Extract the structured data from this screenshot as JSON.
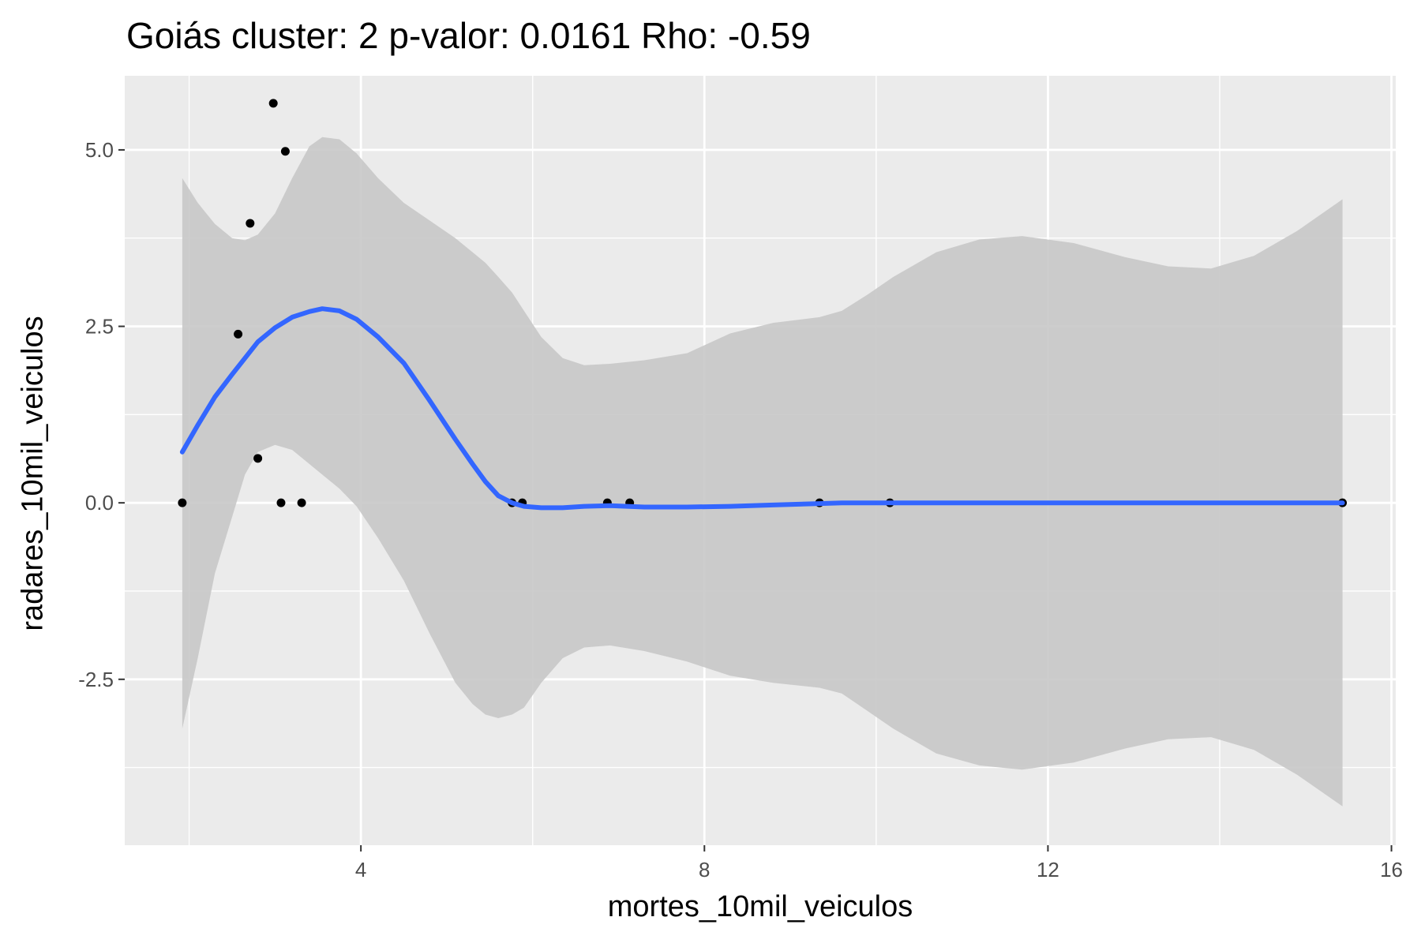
{
  "chart_data": {
    "type": "scatter",
    "title": "Goiás cluster: 2 p-valor: 0.0161 Rho: -0.59",
    "xlabel": "mortes_10mil_veiculos",
    "ylabel": "radares_10mil_veiculos",
    "xlim": [
      1.25,
      16.05
    ],
    "ylim": [
      -4.85,
      6.05
    ],
    "x_ticks": [
      4,
      8,
      12,
      16
    ],
    "x_tick_labels": [
      "4",
      "8",
      "12",
      "16"
    ],
    "y_ticks": [
      -2.5,
      0.0,
      2.5,
      5.0
    ],
    "y_tick_labels": [
      "-2.5",
      "0.0",
      "2.5",
      "5.0"
    ],
    "grid": true,
    "colors": {
      "panel": "#ebebeb",
      "grid": "#ffffff",
      "points": "#000000",
      "smooth_line": "#3366ff",
      "confidence_band": "#c8c8c8"
    },
    "points": [
      {
        "x": 1.92,
        "y": 0.0
      },
      {
        "x": 2.57,
        "y": 2.39
      },
      {
        "x": 2.71,
        "y": 3.96
      },
      {
        "x": 2.8,
        "y": 0.63
      },
      {
        "x": 2.98,
        "y": 5.66
      },
      {
        "x": 3.07,
        "y": 0.0
      },
      {
        "x": 3.12,
        "y": 4.98
      },
      {
        "x": 3.31,
        "y": 0.0
      },
      {
        "x": 5.76,
        "y": 0.0
      },
      {
        "x": 5.88,
        "y": 0.0
      },
      {
        "x": 6.87,
        "y": 0.0
      },
      {
        "x": 7.13,
        "y": 0.0
      },
      {
        "x": 9.34,
        "y": 0.0
      },
      {
        "x": 10.16,
        "y": 0.0
      },
      {
        "x": 15.43,
        "y": 0.0
      }
    ],
    "smooth": [
      {
        "x": 1.92,
        "y": 0.72,
        "lower": -3.2,
        "upper": 4.6
      },
      {
        "x": 2.1,
        "y": 1.1,
        "lower": -2.2,
        "upper": 4.25
      },
      {
        "x": 2.3,
        "y": 1.5,
        "lower": -1.0,
        "upper": 3.95
      },
      {
        "x": 2.5,
        "y": 1.82,
        "lower": -0.2,
        "upper": 3.75
      },
      {
        "x": 2.65,
        "y": 2.05,
        "lower": 0.4,
        "upper": 3.72
      },
      {
        "x": 2.8,
        "y": 2.28,
        "lower": 0.72,
        "upper": 3.8
      },
      {
        "x": 3.0,
        "y": 2.48,
        "lower": 0.82,
        "upper": 4.1
      },
      {
        "x": 3.2,
        "y": 2.63,
        "lower": 0.75,
        "upper": 4.6
      },
      {
        "x": 3.4,
        "y": 2.71,
        "lower": 0.55,
        "upper": 5.05
      },
      {
        "x": 3.55,
        "y": 2.75,
        "lower": 0.4,
        "upper": 5.18
      },
      {
        "x": 3.75,
        "y": 2.72,
        "lower": 0.2,
        "upper": 5.15
      },
      {
        "x": 3.95,
        "y": 2.6,
        "lower": -0.05,
        "upper": 4.95
      },
      {
        "x": 4.2,
        "y": 2.35,
        "lower": -0.5,
        "upper": 4.6
      },
      {
        "x": 4.5,
        "y": 1.98,
        "lower": -1.1,
        "upper": 4.25
      },
      {
        "x": 4.8,
        "y": 1.45,
        "lower": -1.85,
        "upper": 4.0
      },
      {
        "x": 5.1,
        "y": 0.9,
        "lower": -2.55,
        "upper": 3.75
      },
      {
        "x": 5.3,
        "y": 0.55,
        "lower": -2.85,
        "upper": 3.55
      },
      {
        "x": 5.45,
        "y": 0.3,
        "lower": -3.0,
        "upper": 3.4
      },
      {
        "x": 5.6,
        "y": 0.1,
        "lower": -3.05,
        "upper": 3.2
      },
      {
        "x": 5.76,
        "y": 0.0,
        "lower": -3.0,
        "upper": 2.98
      },
      {
        "x": 5.9,
        "y": -0.05,
        "lower": -2.9,
        "upper": 2.72
      },
      {
        "x": 6.1,
        "y": -0.07,
        "lower": -2.55,
        "upper": 2.35
      },
      {
        "x": 6.35,
        "y": -0.07,
        "lower": -2.2,
        "upper": 2.05
      },
      {
        "x": 6.6,
        "y": -0.05,
        "lower": -2.05,
        "upper": 1.95
      },
      {
        "x": 6.9,
        "y": -0.04,
        "lower": -2.02,
        "upper": 1.97
      },
      {
        "x": 7.3,
        "y": -0.06,
        "lower": -2.1,
        "upper": 2.02
      },
      {
        "x": 7.8,
        "y": -0.06,
        "lower": -2.25,
        "upper": 2.12
      },
      {
        "x": 8.3,
        "y": -0.05,
        "lower": -2.45,
        "upper": 2.4
      },
      {
        "x": 8.8,
        "y": -0.03,
        "lower": -2.55,
        "upper": 2.55
      },
      {
        "x": 9.34,
        "y": -0.01,
        "lower": -2.62,
        "upper": 2.63
      },
      {
        "x": 9.6,
        "y": 0.0,
        "lower": -2.7,
        "upper": 2.72
      },
      {
        "x": 9.9,
        "y": 0.0,
        "lower": -2.95,
        "upper": 2.95
      },
      {
        "x": 10.2,
        "y": 0.0,
        "lower": -3.2,
        "upper": 3.2
      },
      {
        "x": 10.7,
        "y": 0.0,
        "lower": -3.55,
        "upper": 3.55
      },
      {
        "x": 11.2,
        "y": 0.0,
        "lower": -3.72,
        "upper": 3.73
      },
      {
        "x": 11.7,
        "y": 0.0,
        "lower": -3.78,
        "upper": 3.78
      },
      {
        "x": 12.3,
        "y": 0.0,
        "lower": -3.68,
        "upper": 3.68
      },
      {
        "x": 12.9,
        "y": 0.0,
        "lower": -3.48,
        "upper": 3.48
      },
      {
        "x": 13.4,
        "y": 0.0,
        "lower": -3.35,
        "upper": 3.35
      },
      {
        "x": 13.9,
        "y": 0.0,
        "lower": -3.32,
        "upper": 3.32
      },
      {
        "x": 14.4,
        "y": 0.0,
        "lower": -3.5,
        "upper": 3.5
      },
      {
        "x": 14.9,
        "y": 0.0,
        "lower": -3.85,
        "upper": 3.85
      },
      {
        "x": 15.43,
        "y": 0.0,
        "lower": -4.3,
        "upper": 4.3
      }
    ]
  }
}
